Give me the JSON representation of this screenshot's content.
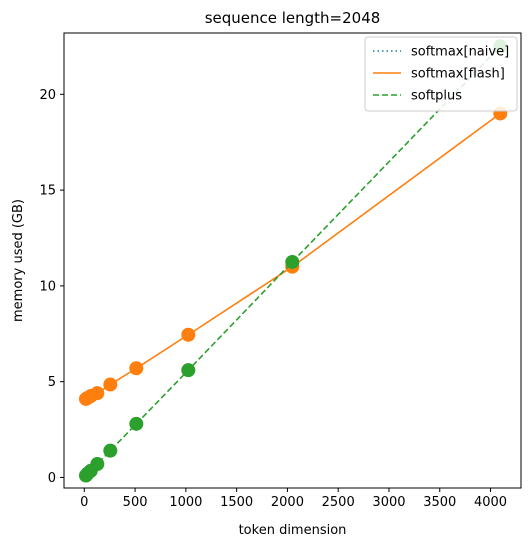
{
  "chart_data": {
    "type": "line",
    "title": "sequence length=2048",
    "xlabel": "token dimension",
    "ylabel": "memory used (GB)",
    "xlim": [
      -200,
      4300
    ],
    "ylim": [
      -0.55,
      23.2
    ],
    "xticks": [
      0,
      500,
      1000,
      1500,
      2000,
      2500,
      3000,
      3500,
      4000
    ],
    "yticks": [
      0,
      5,
      10,
      15,
      20
    ],
    "grid": false,
    "legend_position": "top-right",
    "series": [
      {
        "name": "softmax[naive]",
        "color": "#1f77b4",
        "linestyle": "dotted",
        "marker": "none",
        "x": [],
        "y": []
      },
      {
        "name": "softmax[flash]",
        "color": "#ff7f0e",
        "linestyle": "solid",
        "marker": "circle",
        "x": [
          16,
          32,
          64,
          128,
          256,
          512,
          1024,
          2048,
          4096
        ],
        "y": [
          4.1,
          4.15,
          4.25,
          4.4,
          4.85,
          5.7,
          7.45,
          11.0,
          19.0
        ]
      },
      {
        "name": "softplus",
        "color": "#2ca02c",
        "linestyle": "dashed",
        "marker": "circle",
        "x": [
          16,
          32,
          64,
          128,
          256,
          512,
          1024,
          2048,
          4096
        ],
        "y": [
          0.1,
          0.2,
          0.35,
          0.7,
          1.4,
          2.8,
          5.6,
          11.25,
          22.5
        ]
      }
    ]
  }
}
